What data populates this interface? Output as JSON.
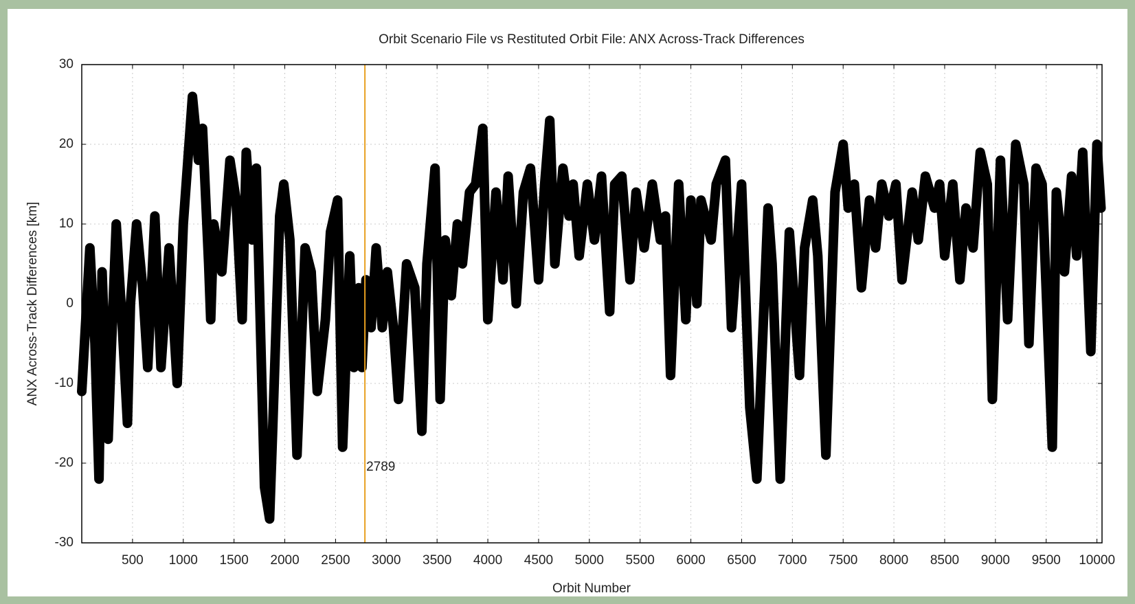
{
  "chart_data": {
    "type": "line",
    "title": "Orbit Scenario File vs Restituted Orbit File: ANX Across-Track Differences",
    "xlabel": "Orbit Number",
    "ylabel": "ANX Across-Track Differences [km]",
    "xlim": [
      0,
      10050
    ],
    "ylim": [
      -30,
      30
    ],
    "xticks": [
      500,
      1000,
      1500,
      2000,
      2500,
      3000,
      3500,
      4000,
      4500,
      5000,
      5500,
      6000,
      6500,
      7000,
      7500,
      8000,
      8500,
      9000,
      9500,
      10000
    ],
    "yticks": [
      -30,
      -20,
      -10,
      0,
      10,
      20,
      30
    ],
    "grid": true,
    "marker_line": {
      "x": 2789,
      "label": "2789",
      "color": "#e8a020"
    },
    "series": [
      {
        "color": "#000000",
        "x": [
          0,
          80,
          130,
          170,
          200,
          260,
          290,
          340,
          400,
          450,
          480,
          540,
          600,
          650,
          720,
          780,
          860,
          940,
          1000,
          1090,
          1150,
          1190,
          1250,
          1270,
          1300,
          1380,
          1460,
          1520,
          1580,
          1620,
          1680,
          1720,
          1800,
          1850,
          1880,
          1950,
          1990,
          2050,
          2120,
          2200,
          2260,
          2320,
          2400,
          2450,
          2520,
          2570,
          2640,
          2680,
          2730,
          2760,
          2800,
          2850,
          2900,
          2960,
          3010,
          3070,
          3120,
          3200,
          3280,
          3350,
          3400,
          3480,
          3530,
          3580,
          3640,
          3700,
          3750,
          3820,
          3880,
          3950,
          4000,
          4080,
          4150,
          4200,
          4280,
          4350,
          4420,
          4500,
          4560,
          4610,
          4660,
          4740,
          4800,
          4840,
          4900,
          4980,
          5050,
          5120,
          5200,
          5250,
          5320,
          5400,
          5460,
          5540,
          5620,
          5700,
          5750,
          5800,
          5880,
          5950,
          6000,
          6060,
          6100,
          6200,
          6250,
          6340,
          6400,
          6500,
          6580,
          6650,
          6760,
          6800,
          6880,
          6970,
          7070,
          7120,
          7200,
          7250,
          7330,
          7420,
          7500,
          7550,
          7610,
          7680,
          7760,
          7820,
          7880,
          7950,
          8020,
          8080,
          8180,
          8240,
          8310,
          8400,
          8450,
          8500,
          8580,
          8650,
          8710,
          8780,
          8850,
          8920,
          8970,
          9050,
          9120,
          9200,
          9280,
          9330,
          9400,
          9460,
          9560,
          9600,
          9680,
          9750,
          9800,
          9860,
          9940,
          10000,
          10040
        ],
        "values": [
          -11,
          7,
          -5,
          -22,
          4,
          -17,
          -6,
          10,
          -3,
          -15,
          0,
          10,
          2,
          -8,
          11,
          -8,
          7,
          -10,
          10,
          26,
          18,
          22,
          5,
          -2,
          10,
          4,
          18,
          13,
          -2,
          19,
          8,
          17,
          -23,
          -27,
          -16,
          11,
          15,
          8,
          -19,
          7,
          4,
          -11,
          -2,
          9,
          13,
          -18,
          6,
          -8,
          2,
          -8,
          3,
          -3,
          7,
          -3,
          4,
          -3,
          -12,
          5,
          2,
          -16,
          5,
          17,
          -12,
          8,
          1,
          10,
          5,
          14,
          15,
          22,
          -2,
          14,
          3,
          16,
          0,
          14,
          17,
          3,
          15,
          23,
          5,
          17,
          11,
          15,
          6,
          15,
          8,
          16,
          -1,
          15,
          16,
          3,
          14,
          7,
          15,
          8,
          11,
          -9,
          15,
          -2,
          13,
          0,
          13,
          8,
          15,
          18,
          -3,
          15,
          -13,
          -22,
          12,
          5,
          -22,
          9,
          -9,
          7,
          13,
          6,
          -19,
          14,
          20,
          12,
          15,
          2,
          13,
          7,
          15,
          11,
          15,
          3,
          14,
          8,
          16,
          12,
          15,
          6,
          15,
          3,
          12,
          7,
          19,
          15,
          -12,
          18,
          -2,
          20,
          15,
          -5,
          17,
          15,
          -18,
          14,
          4,
          16,
          6,
          19,
          -6,
          20,
          12
        ]
      }
    ]
  }
}
